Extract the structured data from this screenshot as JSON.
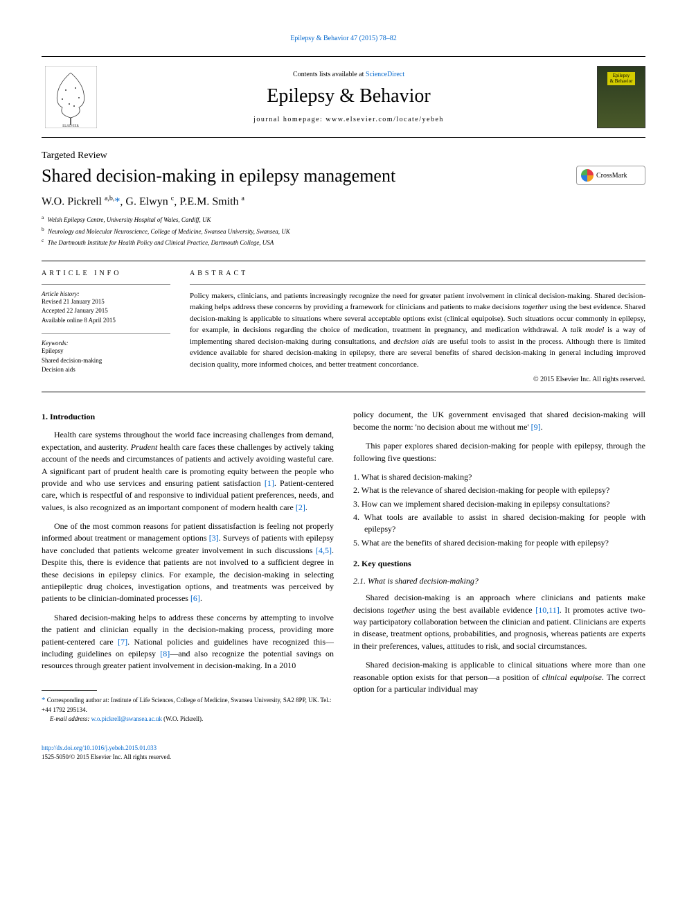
{
  "top_link": "Epilepsy & Behavior 47 (2015) 78–82",
  "header": {
    "contents_prefix": "Contents lists available at ",
    "contents_link": "ScienceDirect",
    "journal": "Epilepsy & Behavior",
    "homepage_prefix": "journal homepage: ",
    "homepage_url": "www.elsevier.com/locate/yebeh",
    "cover_label_1": "Epilepsy",
    "cover_label_2": "& Behavior"
  },
  "article_type": "Targeted Review",
  "title": "Shared decision-making in epilepsy management",
  "crossmark": "CrossMark",
  "authors_html": "W.O. Pickrell <sup>a,b,</sup><span class='star'>*</span>, G. Elwyn <sup>c</sup>, P.E.M. Smith <sup>a</sup>",
  "affiliations": [
    {
      "sup": "a",
      "text": "Welsh Epilepsy Centre, University Hospital of Wales, Cardiff, UK"
    },
    {
      "sup": "b",
      "text": "Neurology and Molecular Neuroscience, College of Medicine, Swansea University, Swansea, UK"
    },
    {
      "sup": "c",
      "text": "The Dartmouth Institute for Health Policy and Clinical Practice, Dartmouth College, USA"
    }
  ],
  "info": {
    "heading": "article info",
    "history_label": "Article history:",
    "history": [
      "Revised 21 January 2015",
      "Accepted 22 January 2015",
      "Available online 8 April 2015"
    ],
    "keywords_label": "Keywords:",
    "keywords": [
      "Epilepsy",
      "Shared decision-making",
      "Decision aids"
    ]
  },
  "abstract": {
    "heading": "abstract",
    "text": "Policy makers, clinicians, and patients increasingly recognize the need for greater patient involvement in clinical decision-making. Shared decision-making helps address these concerns by providing a framework for clinicians and patients to make decisions together using the best evidence. Shared decision-making is applicable to situations where several acceptable options exist (clinical equipoise). Such situations occur commonly in epilepsy, for example, in decisions regarding the choice of medication, treatment in pregnancy, and medication withdrawal. A talk model is a way of implementing shared decision-making during consultations, and decision aids are useful tools to assist in the process. Although there is limited evidence available for shared decision-making in epilepsy, there are several benefits of shared decision-making in general including improved decision quality, more informed choices, and better treatment concordance.",
    "copyright": "© 2015 Elsevier Inc. All rights reserved."
  },
  "intro_heading": "1. Introduction",
  "intro_paras": [
    "Health care systems throughout the world face increasing challenges from demand, expectation, and austerity. Prudent health care faces these challenges by actively taking account of the needs and circumstances of patients and actively avoiding wasteful care. A significant part of prudent health care is promoting equity between the people who provide and who use services and ensuring patient satisfaction [1]. Patient-centered care, which is respectful of and responsive to individual patient preferences, needs, and values, is also recognized as an important component of modern health care [2].",
    "One of the most common reasons for patient dissatisfaction is feeling not properly informed about treatment or management options [3]. Surveys of patients with epilepsy have concluded that patients welcome greater involvement in such discussions [4,5]. Despite this, there is evidence that patients are not involved to a sufficient degree in these decisions in epilepsy clinics. For example, the decision-making in selecting antiepileptic drug choices, investigation options, and treatments was perceived by patients to be clinician-dominated processes [6].",
    "Shared decision-making helps to address these concerns by attempting to involve the patient and clinician equally in the decision-making process, providing more patient-centered care [7]. National policies and guidelines have recognized this—including guidelines on epilepsy [8]—and also recognize the potential savings on resources through greater patient involvement in decision-making. In a 2010"
  ],
  "right_top_paras": [
    "policy document, the UK government envisaged that shared decision-making will become the norm: 'no decision about me without me' [9].",
    "This paper explores shared decision-making for people with epilepsy, through the following five questions:"
  ],
  "questions": [
    "1. What is shared decision-making?",
    "2. What is the relevance of shared decision-making for people with epilepsy?",
    "3. How can we implement shared decision-making in epilepsy consultations?",
    "4. What tools are available to assist in shared decision-making for people with epilepsy?",
    "5. What are the benefits of shared decision-making for people with epilepsy?"
  ],
  "key_q_heading": "2. Key questions",
  "sub21_heading": "2.1. What is shared decision-making?",
  "sub21_paras": [
    "Shared decision-making is an approach where clinicians and patients make decisions together using the best available evidence [10,11]. It promotes active two-way participatory collaboration between the clinician and patient. Clinicians are experts in disease, treatment options, probabilities, and prognosis, whereas patients are experts in their preferences, values, attitudes to risk, and social circumstances.",
    "Shared decision-making is applicable to clinical situations where more than one reasonable option exists for that person—a position of clinical equipoise. The correct option for a particular individual may"
  ],
  "footnote": {
    "corr": "Corresponding author at: Institute of Life Sciences, College of Medicine, Swansea University, SA2 8PP, UK. Tel.: +44 1792 295134.",
    "email_label": "E-mail address: ",
    "email": "w.o.pickrell@swansea.ac.uk",
    "email_suffix": " (W.O. Pickrell)."
  },
  "bottom": {
    "doi": "http://dx.doi.org/10.1016/j.yebeh.2015.01.033",
    "issn": "1525-5050/© 2015 Elsevier Inc. All rights reserved."
  },
  "colors": {
    "link": "#0066cc",
    "text": "#000000",
    "border": "#000000"
  }
}
